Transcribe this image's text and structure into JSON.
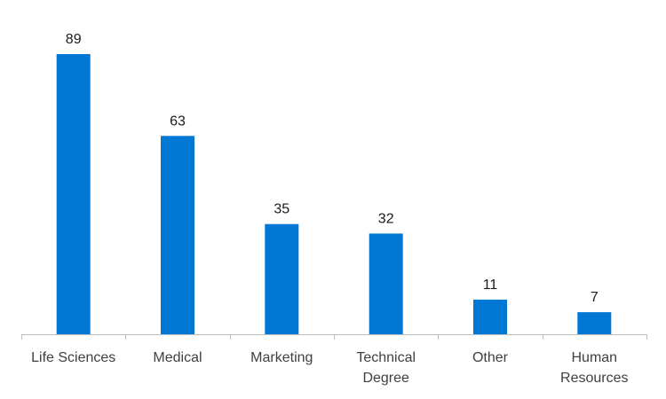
{
  "chart_data": {
    "type": "bar",
    "title": "",
    "xlabel": "",
    "ylabel": "",
    "categories": [
      "Life Sciences",
      "Medical",
      "Marketing",
      "Technical Degree",
      "Other",
      "Human Resources"
    ],
    "category_lines": [
      [
        "Life Sciences"
      ],
      [
        "Medical"
      ],
      [
        "Marketing"
      ],
      [
        "Technical",
        "Degree"
      ],
      [
        "Other"
      ],
      [
        "Human",
        "Resources"
      ]
    ],
    "values": [
      89,
      63,
      35,
      32,
      11,
      7
    ],
    "ylim": [
      0,
      89
    ],
    "grid": false,
    "show_y_axis": false,
    "data_labels": true,
    "bar_color": "#0078D4",
    "axis_color": "#BFBFBF"
  }
}
